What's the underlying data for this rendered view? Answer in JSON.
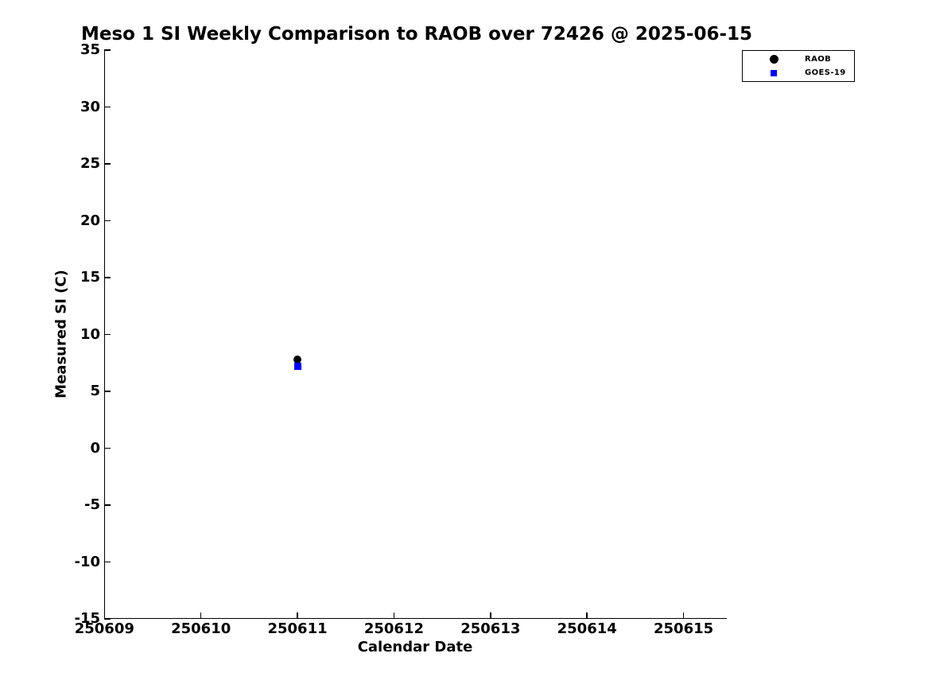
{
  "chart_data": {
    "type": "scatter",
    "title": "Meso 1 SI Weekly Comparison to RAOB over 72426 @ 2025-06-15",
    "xlabel": "Calendar Date",
    "ylabel": "Measured SI (C)",
    "xlim": [
      250609,
      250615.44
    ],
    "ylim": [
      -15,
      35
    ],
    "x_ticks": [
      250609,
      250610,
      250611,
      250612,
      250613,
      250614,
      250615
    ],
    "y_ticks": [
      35,
      30,
      25,
      20,
      15,
      10,
      5,
      0,
      -5,
      -10,
      -15
    ],
    "grid": false,
    "background": "#ffffff",
    "axis_color": "#000000",
    "legend": {
      "position": "top-right-outside",
      "border": true,
      "items": [
        {
          "label": "RAOB",
          "marker": "circle",
          "color": "#000000"
        },
        {
          "label": "GOES-19",
          "marker": "square",
          "color": "#0000ff"
        }
      ]
    },
    "series": [
      {
        "name": "RAOB",
        "marker": "circle",
        "color": "#000000",
        "points": [
          {
            "x": 250611,
            "y": 7.8
          }
        ]
      },
      {
        "name": "GOES-19",
        "marker": "square",
        "color": "#0000ff",
        "points": [
          {
            "x": 250611,
            "y": 7.2
          }
        ]
      }
    ]
  }
}
